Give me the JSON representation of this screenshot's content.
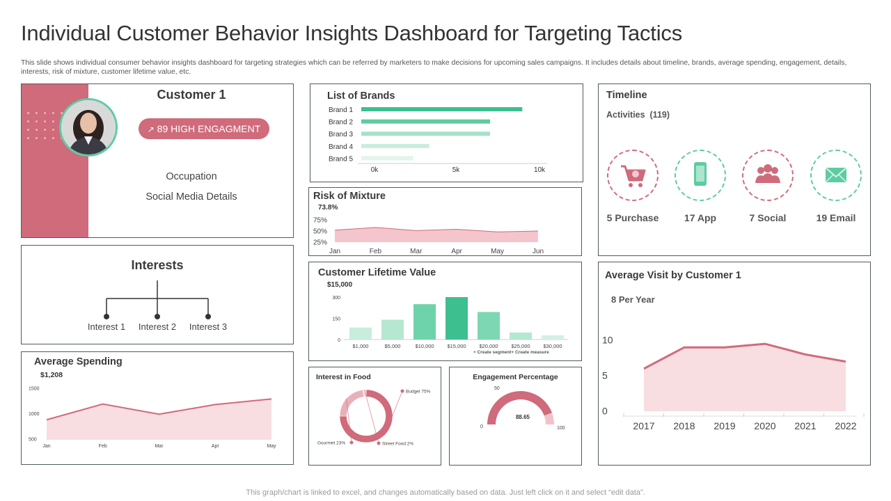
{
  "page": {
    "title": "Individual Customer Behavior Insights Dashboard for Targeting Tactics",
    "subtitle": "This slide shows individual consumer behavior insights dashboard for targeting strategies which can be referred by marketers to make decisions for upcoming sales campaigns. It includes details about timeline, brands, average spending, engagement, details, interests, risk of mixture, customer lifetime value, etc.",
    "footer": "This graph/chart is linked to excel, and changes automatically based on data. Just left click on it and select “edit data”."
  },
  "colors": {
    "accent": "#cf6b7b",
    "accent_light": "#f3d3d8",
    "green": "#3dbf8f",
    "border": "#505b5b"
  },
  "customer": {
    "name": "Customer 1",
    "engagement_badge": "89 HIGH ENGAGMENT",
    "occupation": "Occupation",
    "social": "Social Media Details"
  },
  "interests": {
    "title": "Interests",
    "items": [
      "Interest 1",
      "Interest 2",
      "Interest 3"
    ]
  },
  "average_spending": {
    "title": "Average Spending",
    "value": "$1,208",
    "chart_data": {
      "type": "area",
      "categories": [
        "Jan",
        "Feb",
        "Mar",
        "Apr",
        "May"
      ],
      "y_ticks": [
        "1500",
        "1000",
        "500"
      ],
      "ylim": [
        500,
        1500
      ],
      "values": [
        880,
        1190,
        990,
        1180,
        1290
      ]
    }
  },
  "brands": {
    "title": "List of Brands",
    "chart_data": {
      "type": "bar",
      "categories": [
        "Brand 1",
        "Brand 2",
        "Brand 3",
        "Brand 4",
        "Brand 5"
      ],
      "values": [
        9000,
        7200,
        7200,
        3800,
        2900
      ],
      "x_ticks": [
        "0k",
        "5k",
        "10k"
      ],
      "xlim": [
        0,
        10000
      ],
      "colors": [
        "#3dbf8f",
        "#5ccb9f",
        "#a6e2c9",
        "#c9eddd",
        "#e0f5ec"
      ]
    }
  },
  "risk": {
    "title": "Risk of Mixture",
    "value": "73.8%",
    "chart_data": {
      "type": "area",
      "categories": [
        "Jan",
        "Feb",
        "Mar",
        "Apr",
        "May",
        "Jun"
      ],
      "y_ticks": [
        "75%",
        "50%",
        "25%"
      ],
      "ylim": [
        25,
        75
      ],
      "values": [
        52,
        58,
        51,
        54,
        48,
        50
      ]
    }
  },
  "clv": {
    "title": "Customer Lifetime Value",
    "value": "$15,000",
    "note": "+ Create segment+ Create measure",
    "chart_data": {
      "type": "bar",
      "categories": [
        "$1,000",
        "$5,000",
        "$10,000",
        "$15,000",
        "$20,000",
        "$25,000",
        "$30,000"
      ],
      "values": [
        85,
        140,
        250,
        300,
        195,
        50,
        30
      ],
      "y_ticks": [
        "300",
        "150",
        "0"
      ],
      "ylim": [
        0,
        300
      ],
      "colors": [
        "#c9eddd",
        "#b5e7d1",
        "#6ed3ab",
        "#3dbf8f",
        "#7dd7b3",
        "#b5e7d1",
        "#d3f0e3"
      ]
    }
  },
  "food": {
    "title": "Interest in Food",
    "chart_data": {
      "type": "pie",
      "slices": [
        {
          "label": "Budget",
          "value": 75,
          "text": "Budget 75%"
        },
        {
          "label": "Gourmet",
          "value": 23,
          "text": "Gourmet 23%"
        },
        {
          "label": "Street Food",
          "value": 2,
          "text": "Street Food 2%"
        }
      ],
      "colors": [
        "#cf6b7b",
        "#e8b1ba",
        "#f4dade"
      ]
    }
  },
  "engagement": {
    "title": "Engagement Percentage",
    "value": "88.65",
    "min_label": "0",
    "mid_label": "50",
    "max_label": "100",
    "chart_data": {
      "type": "gauge",
      "value": 88.65,
      "min": 0,
      "max": 100
    }
  },
  "timeline": {
    "title": "Timeline",
    "activities": "Activities  (119)",
    "items": [
      {
        "label": "5 Purchase",
        "icon": "cart-icon"
      },
      {
        "label": "17 App",
        "icon": "phone-icon"
      },
      {
        "label": "7 Social",
        "icon": "people-icon"
      },
      {
        "label": "19 Email",
        "icon": "mail-icon"
      }
    ]
  },
  "avg_visit": {
    "title": "Average Visit by Customer 1",
    "value": "8 Per Year",
    "chart_data": {
      "type": "area",
      "categories": [
        "2017",
        "2018",
        "2019",
        "2020",
        "2021",
        "2022"
      ],
      "y_ticks": [
        "10",
        "5",
        "0"
      ],
      "ylim": [
        0,
        10
      ],
      "values": [
        6,
        9,
        9,
        9.5,
        8,
        7
      ]
    }
  }
}
